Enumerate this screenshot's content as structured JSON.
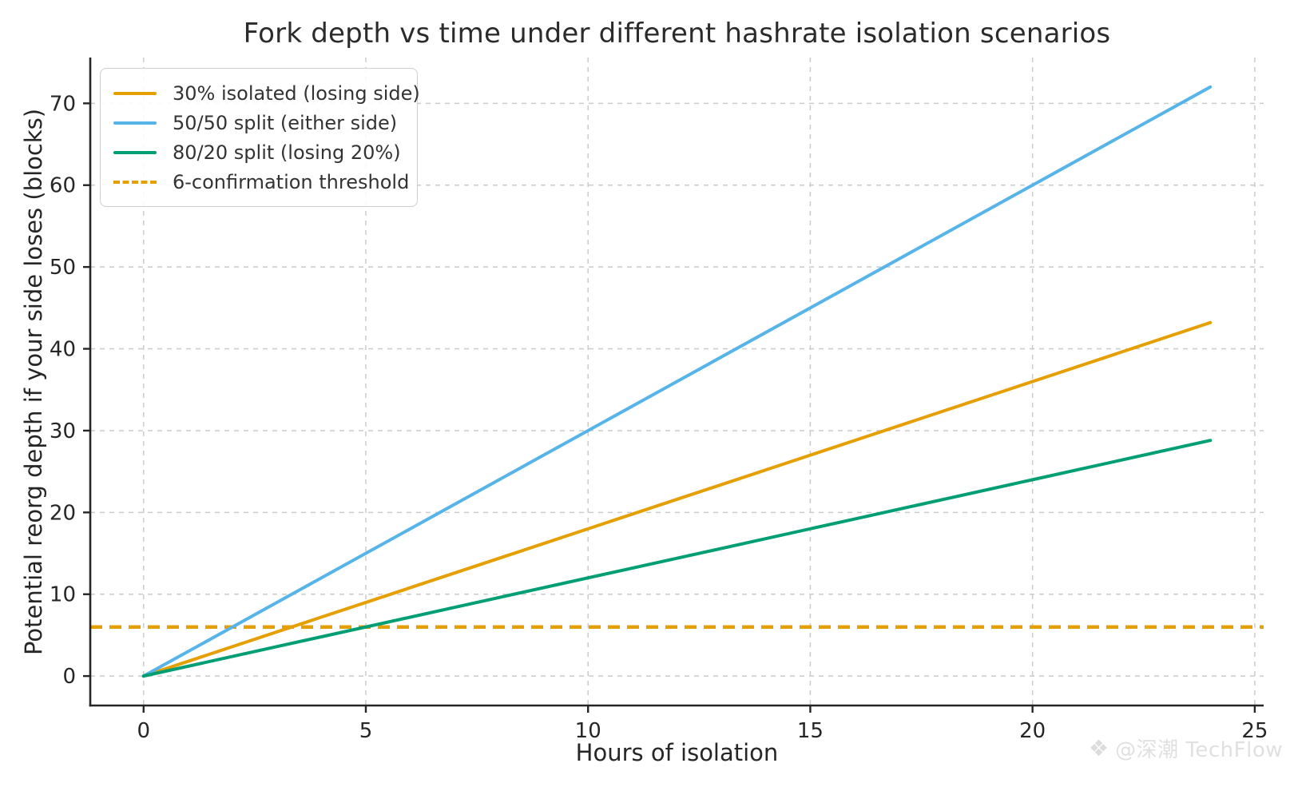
{
  "title": "Fork depth vs time under different hashrate isolation scenarios",
  "watermark": {
    "handle": "@深潮 TechFlow",
    "logo_icon": "techflow-diamond-logo"
  },
  "colors": {
    "grid": "#cbcbcb",
    "spine": "#262626",
    "text": "#262626",
    "legend_border": "#cfcfcf"
  },
  "chart_data": {
    "type": "line",
    "title": "Fork depth vs time under different hashrate isolation scenarios",
    "xlabel": "Hours of isolation",
    "ylabel": "Potential reorg depth if your side loses (blocks)",
    "x_ticks": [
      0,
      5,
      10,
      15,
      20,
      25
    ],
    "y_ticks": [
      0,
      10,
      20,
      30,
      40,
      50,
      60,
      70
    ],
    "xlim": [
      -1.2,
      25.2
    ],
    "ylim": [
      -3.6,
      75.6
    ],
    "grid": true,
    "grid_style": "dashed",
    "legend_position": "upper-left",
    "x": [
      0,
      4,
      8,
      12,
      16,
      20,
      24
    ],
    "series": [
      {
        "name": "30% isolated (losing side)",
        "color": "#E69F00",
        "style": "solid",
        "blocks_per_hour": 1.8,
        "values": [
          0,
          7.2,
          14.4,
          21.6,
          28.8,
          36.0,
          43.2
        ]
      },
      {
        "name": "50/50 split (either side)",
        "color": "#56B4E9",
        "style": "solid",
        "blocks_per_hour": 3.0,
        "values": [
          0,
          12,
          24,
          36,
          48,
          60,
          72
        ]
      },
      {
        "name": "80/20 split (losing 20%)",
        "color": "#009E73",
        "style": "solid",
        "blocks_per_hour": 1.2,
        "values": [
          0,
          4.8,
          9.6,
          14.4,
          19.2,
          24.0,
          28.8
        ]
      }
    ],
    "threshold": {
      "name": "6-confirmation threshold",
      "color": "#E69F00",
      "style": "dashed",
      "y": 6
    }
  }
}
